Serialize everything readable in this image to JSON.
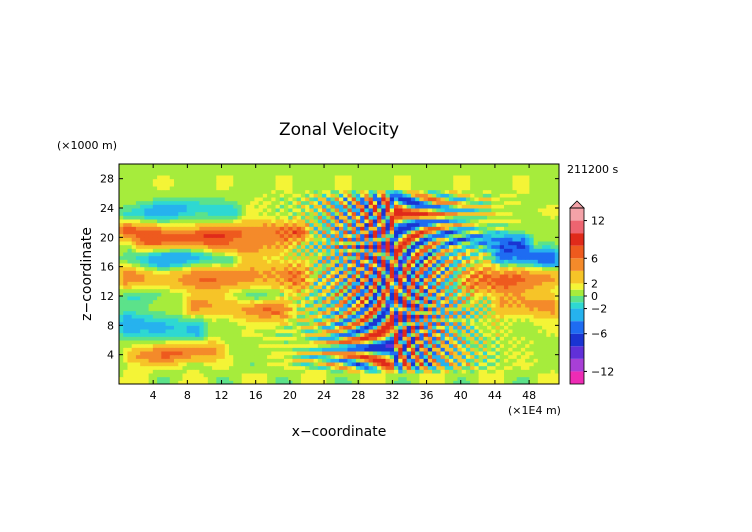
{
  "chart_data": {
    "type": "heatmap",
    "title": "Zonal Velocity",
    "xlabel": "x−coordinate",
    "ylabel": "z−coordinate",
    "x_unit": "(×1E4 m)",
    "y_unit": "(×1000 m)",
    "time_label": "211200 s",
    "xlim": [
      0,
      51.5
    ],
    "ylim": [
      0,
      30
    ],
    "x_ticks": [
      "4",
      "8",
      "12",
      "16",
      "20",
      "24",
      "28",
      "32",
      "36",
      "40",
      "44",
      "48"
    ],
    "y_ticks": [
      "4",
      "8",
      "12",
      "16",
      "20",
      "24",
      "28"
    ],
    "colorbar": {
      "range": [
        -14,
        14
      ],
      "tick_labels": [
        "12",
        "6",
        "2",
        "0",
        "−2",
        "−6",
        "−12"
      ],
      "levels": [
        {
          "lo": -14,
          "hi": -12,
          "color": "#ee2bb5"
        },
        {
          "lo": -12,
          "hi": -10,
          "color": "#a83fd6"
        },
        {
          "lo": -10,
          "hi": -8,
          "color": "#6030d8"
        },
        {
          "lo": -8,
          "hi": -6,
          "color": "#1a34d2"
        },
        {
          "lo": -6,
          "hi": -4,
          "color": "#1e6cf2"
        },
        {
          "lo": -4,
          "hi": -2,
          "color": "#26b2ee"
        },
        {
          "lo": -2,
          "hi": -1,
          "color": "#2ed8d2"
        },
        {
          "lo": -1,
          "hi": 0,
          "color": "#5ce28a"
        },
        {
          "lo": 0,
          "hi": 1,
          "color": "#a6ec3c"
        },
        {
          "lo": 1,
          "hi": 2,
          "color": "#f4f436"
        },
        {
          "lo": 2,
          "hi": 4,
          "color": "#f6c428"
        },
        {
          "lo": 4,
          "hi": 6,
          "color": "#f48a2a"
        },
        {
          "lo": 6,
          "hi": 8,
          "color": "#ee5a1e"
        },
        {
          "lo": 8,
          "hi": 10,
          "color": "#e02a1a"
        },
        {
          "lo": 10,
          "hi": 12,
          "color": "#ee6470"
        },
        {
          "lo": 12,
          "hi": 14,
          "color": "#f4a2a8"
        }
      ]
    },
    "field_structure": {
      "grid": [
        104,
        60
      ],
      "layers": [
        {
          "z": 23.6,
          "width": 1.0,
          "amp": -3.0,
          "x_range": [
            0,
            14
          ]
        },
        {
          "z": 20.6,
          "width": 0.9,
          "amp": 5.5,
          "x_range": [
            0,
            22
          ]
        },
        {
          "z": 19.0,
          "width": 0.9,
          "amp": 3.5,
          "x_range": [
            2,
            20
          ]
        },
        {
          "z": 17.0,
          "width": 1.1,
          "amp": -4.0,
          "x_range": [
            0,
            14
          ]
        },
        {
          "z": 14.5,
          "width": 1.4,
          "amp": 4.5,
          "x_range": [
            0,
            22
          ]
        },
        {
          "z": 12.2,
          "width": 1.0,
          "amp": -2.0,
          "x_range": [
            0,
            20
          ]
        },
        {
          "z": 10.5,
          "width": 1.0,
          "amp": 4.5,
          "x_range": [
            8,
            20
          ]
        },
        {
          "z": 7.8,
          "width": 1.3,
          "amp": -3.5,
          "x_range": [
            0,
            10
          ]
        },
        {
          "z": 4.2,
          "width": 0.9,
          "amp": 4.5,
          "x_range": [
            1,
            12
          ]
        },
        {
          "z": 17.0,
          "width": 1.0,
          "amp": -6.5,
          "x_range": [
            44,
            51.5
          ]
        },
        {
          "z": 19.6,
          "width": 0.9,
          "amp": -5.0,
          "x_range": [
            38,
            48
          ]
        },
        {
          "z": 14.5,
          "width": 1.3,
          "amp": 5.0,
          "x_range": [
            40,
            51.5
          ]
        },
        {
          "z": 10.5,
          "width": 1.0,
          "amp": 4.0,
          "x_range": [
            44,
            51.5
          ]
        }
      ],
      "wave_packet": {
        "x_center": 32,
        "x_halfwidth": 12,
        "z_range": [
          2,
          26
        ],
        "amp": 9
      }
    }
  }
}
